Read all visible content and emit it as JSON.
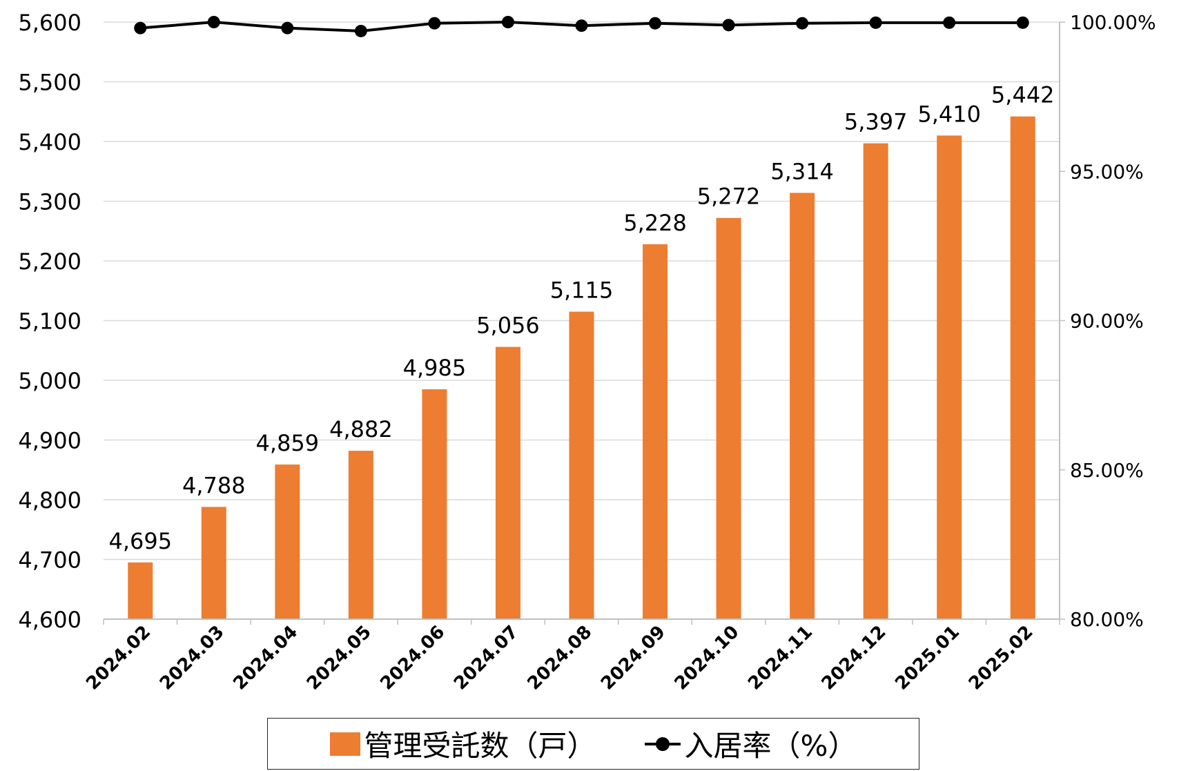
{
  "chart_data": {
    "type": "bar",
    "categories": [
      "2024.02",
      "2024.03",
      "2024.04",
      "2024.05",
      "2024.06",
      "2024.07",
      "2024.08",
      "2024.09",
      "2024.10",
      "2024.11",
      "2024.12",
      "2025.01",
      "2025.02"
    ],
    "series": [
      {
        "name": "管理受託数（戸）",
        "type": "bar",
        "axis": "left",
        "values": [
          4695,
          4788,
          4859,
          4882,
          4985,
          5056,
          5115,
          5228,
          5272,
          5314,
          5397,
          5410,
          5442
        ],
        "data_labels": [
          "4,695",
          "4,788",
          "4,859",
          "4,882",
          "4,985",
          "5,056",
          "5,115",
          "5,228",
          "5,272",
          "5,314",
          "5,397",
          "5,410",
          "5,442"
        ]
      },
      {
        "name": "入居率（%）",
        "type": "line",
        "axis": "right",
        "values": [
          99.8,
          100.0,
          99.8,
          99.7,
          99.96,
          100.0,
          99.88,
          99.96,
          99.9,
          99.96,
          99.98,
          99.98,
          99.98
        ]
      }
    ],
    "y_left": {
      "lim": [
        4600,
        5600
      ],
      "ticks": [
        "4,600",
        "4,700",
        "4,800",
        "4,900",
        "5,000",
        "5,100",
        "5,200",
        "5,300",
        "5,400",
        "5,500",
        "5,600"
      ]
    },
    "y_right": {
      "lim": [
        80,
        100
      ],
      "ticks": [
        "80.00%",
        "85.00%",
        "90.00%",
        "95.00%",
        "100.00%"
      ]
    },
    "grid": true,
    "legend_position": "bottom",
    "colors": {
      "bar": "#ED7D31",
      "line": "#000000",
      "grid": "#d9d9d9",
      "axis": "#bfbfbf"
    }
  }
}
